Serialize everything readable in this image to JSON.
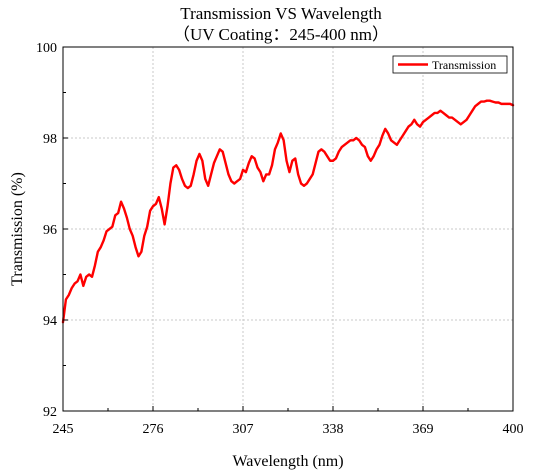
{
  "chart_data": {
    "type": "line",
    "title": "Transmission VS Wavelength",
    "subtitle": "（UV Coating：245-400 nm）",
    "xlabel": "Wavelength (nm)",
    "ylabel": "Transmission (%)",
    "xlim": [
      245,
      400
    ],
    "ylim": [
      92,
      100
    ],
    "x_ticks": [
      "245",
      "276",
      "307",
      "338",
      "369",
      "400"
    ],
    "y_ticks": [
      "92",
      "94",
      "96",
      "98",
      "100"
    ],
    "grid": true,
    "legend_position": "top-right",
    "series_color": "#ff0000",
    "series": [
      {
        "name": "Transmission",
        "x": [
          245,
          246,
          247,
          248,
          249,
          250,
          251,
          252,
          253,
          254,
          255,
          256,
          257,
          258,
          259,
          260,
          261,
          262,
          263,
          264,
          265,
          266,
          267,
          268,
          269,
          270,
          271,
          272,
          273,
          274,
          275,
          276,
          277,
          278,
          279,
          280,
          281,
          282,
          283,
          284,
          285,
          286,
          287,
          288,
          289,
          290,
          291,
          292,
          293,
          294,
          295,
          296,
          297,
          298,
          299,
          300,
          301,
          302,
          303,
          304,
          305,
          306,
          307,
          308,
          309,
          310,
          311,
          312,
          313,
          314,
          315,
          316,
          317,
          318,
          319,
          320,
          321,
          322,
          323,
          324,
          325,
          326,
          327,
          328,
          329,
          330,
          331,
          332,
          333,
          334,
          335,
          336,
          337,
          338,
          339,
          340,
          341,
          342,
          343,
          344,
          345,
          346,
          347,
          348,
          349,
          350,
          351,
          352,
          353,
          354,
          355,
          356,
          357,
          358,
          359,
          360,
          361,
          362,
          363,
          364,
          365,
          366,
          367,
          368,
          369,
          370,
          371,
          372,
          373,
          374,
          375,
          376,
          377,
          378,
          379,
          380,
          381,
          382,
          383,
          384,
          385,
          386,
          387,
          388,
          389,
          390,
          391,
          392,
          393,
          394,
          395,
          396,
          397,
          398,
          399,
          400
        ],
        "values": [
          93.95,
          94.45,
          94.55,
          94.7,
          94.8,
          94.85,
          95.0,
          94.75,
          94.95,
          95.0,
          94.95,
          95.2,
          95.5,
          95.6,
          95.75,
          95.95,
          96.0,
          96.05,
          96.3,
          96.35,
          96.6,
          96.45,
          96.25,
          96.0,
          95.85,
          95.6,
          95.4,
          95.5,
          95.85,
          96.05,
          96.4,
          96.5,
          96.55,
          96.7,
          96.45,
          96.1,
          96.5,
          97.0,
          97.35,
          97.4,
          97.3,
          97.1,
          96.95,
          96.9,
          96.95,
          97.2,
          97.5,
          97.65,
          97.5,
          97.1,
          96.95,
          97.2,
          97.45,
          97.6,
          97.75,
          97.7,
          97.45,
          97.2,
          97.05,
          97.0,
          97.05,
          97.1,
          97.3,
          97.25,
          97.45,
          97.6,
          97.55,
          97.35,
          97.25,
          97.05,
          97.2,
          97.2,
          97.4,
          97.75,
          97.9,
          98.1,
          97.95,
          97.5,
          97.25,
          97.5,
          97.55,
          97.2,
          97.0,
          96.95,
          97.0,
          97.1,
          97.2,
          97.45,
          97.7,
          97.75,
          97.7,
          97.6,
          97.5,
          97.5,
          97.55,
          97.7,
          97.8,
          97.85,
          97.9,
          97.95,
          97.95,
          98.0,
          97.95,
          97.85,
          97.8,
          97.6,
          97.5,
          97.6,
          97.75,
          97.85,
          98.05,
          98.2,
          98.1,
          97.95,
          97.9,
          97.85,
          97.95,
          98.05,
          98.15,
          98.25,
          98.3,
          98.4,
          98.3,
          98.25,
          98.35,
          98.4,
          98.45,
          98.5,
          98.55,
          98.55,
          98.6,
          98.55,
          98.5,
          98.45,
          98.45,
          98.4,
          98.35,
          98.3,
          98.35,
          98.4,
          98.5,
          98.6,
          98.7,
          98.75,
          98.8,
          98.8,
          98.82,
          98.82,
          98.8,
          98.78,
          98.78,
          98.75,
          98.75,
          98.75,
          98.75,
          98.72
        ]
      }
    ]
  }
}
